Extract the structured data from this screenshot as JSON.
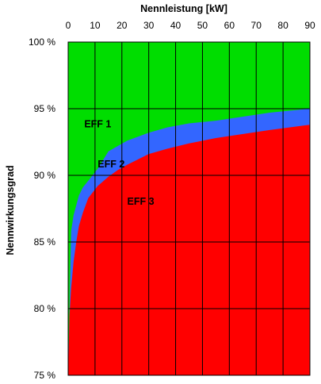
{
  "chart_data": {
    "type": "area",
    "title": "",
    "xlabel": "Nennleistung [kW]",
    "ylabel": "Nennwirkungsgrad",
    "xlim": [
      0,
      90
    ],
    "ylim": [
      75,
      100
    ],
    "x_ticks": [
      "0",
      "10",
      "20",
      "30",
      "40",
      "50",
      "60",
      "70",
      "80",
      "90"
    ],
    "y_ticks": [
      "75 %",
      "80 %",
      "85 %",
      "90 %",
      "95 %",
      "100 %"
    ],
    "y_tick_values": [
      75,
      80,
      85,
      90,
      95,
      100
    ],
    "x_axis_position": "top",
    "grid": true,
    "colors": {
      "EFF 1": "#00dd00",
      "EFF 2": "#3366ff",
      "EFF 3": "#ff0000",
      "grid": "#000000"
    },
    "series": [
      {
        "name": "EFF 2",
        "x": [
          0,
          1.1,
          2,
          4,
          5.5,
          7.5,
          11,
          15,
          18.5,
          22,
          30,
          37,
          45,
          55,
          75,
          90
        ],
        "y": [
          75,
          85.8,
          87,
          88.5,
          89.1,
          89.6,
          90.5,
          91.8,
          92.2,
          92.6,
          93.2,
          93.6,
          93.9,
          94.1,
          94.7,
          95.0
        ]
      },
      {
        "name": "EFF 3",
        "x": [
          0,
          0.5,
          1.1,
          2,
          3,
          4,
          5.5,
          7.5,
          11,
          15,
          18.5,
          22,
          30,
          37,
          45,
          55,
          75,
          90
        ],
        "y": [
          75,
          79.5,
          81.5,
          83.5,
          85,
          86.2,
          87.2,
          88.3,
          89.2,
          89.9,
          90.4,
          90.8,
          91.6,
          92.0,
          92.4,
          92.8,
          93.4,
          93.8
        ]
      }
    ],
    "region_labels": [
      {
        "text": "EFF 1",
        "x": 6,
        "y": 93.6
      },
      {
        "text": "EFF 2",
        "x": 11,
        "y": 90.6
      },
      {
        "text": "EFF 3",
        "x": 22,
        "y": 87.8
      }
    ]
  }
}
